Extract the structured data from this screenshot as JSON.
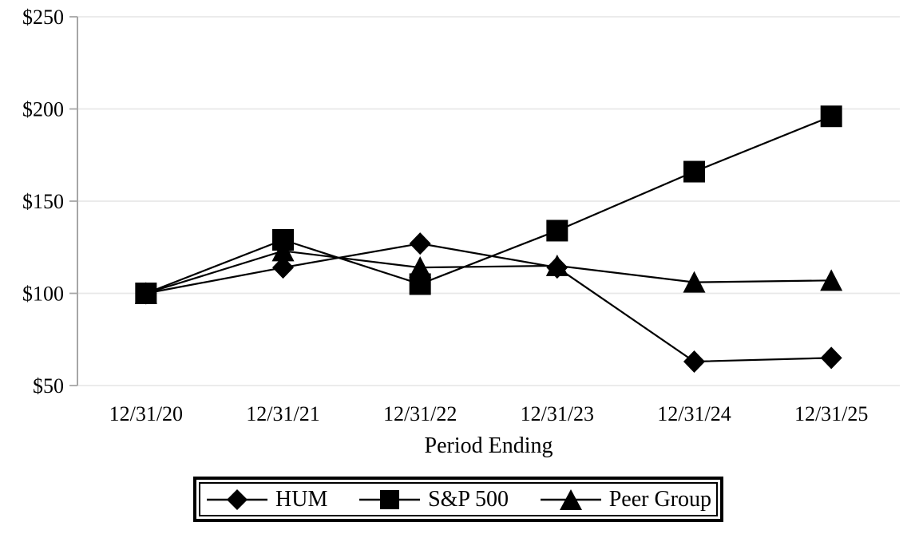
{
  "chart_data": {
    "type": "line",
    "title": "",
    "xlabel": "Period Ending",
    "ylabel": "",
    "x": [
      "12/31/20",
      "12/31/21",
      "12/31/22",
      "12/31/23",
      "12/31/24",
      "12/31/25"
    ],
    "y_ticks": [
      {
        "label": "$250",
        "value": 250
      },
      {
        "label": "$200",
        "value": 200
      },
      {
        "label": "$150",
        "value": 150
      },
      {
        "label": "$100",
        "value": 100
      },
      {
        "label": "$50",
        "value": 50
      }
    ],
    "ylim": [
      50,
      250
    ],
    "grid": true,
    "legend_position": "bottom",
    "series": [
      {
        "name": "HUM",
        "marker": "diamond",
        "color": "#000000",
        "values": [
          100,
          114,
          127,
          114,
          63,
          65
        ]
      },
      {
        "name": "S&P 500",
        "marker": "square",
        "color": "#000000",
        "values": [
          100,
          129,
          105,
          134,
          166,
          196
        ]
      },
      {
        "name": "Peer Group",
        "marker": "triangle",
        "color": "#000000",
        "values": [
          100,
          123,
          114,
          115,
          106,
          107
        ]
      }
    ],
    "colors": {
      "line": "#000000",
      "marker": "#000000",
      "grid": "#e8e8e8",
      "axis": "#a6a6a6",
      "text": "#000000",
      "background": "#ffffff"
    }
  }
}
